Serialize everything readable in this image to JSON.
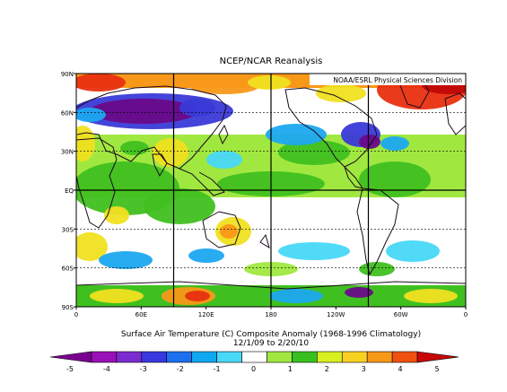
{
  "figure": {
    "title": "NCEP/NCAR Reanalysis",
    "credit": "NOAA/ESRL Physical Sciences Division",
    "caption_line1": "Surface Air Temperature (C) Composite Anomaly (1968-1996 Climatology)",
    "caption_line2": "12/1/09  to 2/20/10"
  },
  "map": {
    "lat_labels": [
      "90N",
      "60N",
      "30N",
      "EQ",
      "30S",
      "60S",
      "90S"
    ],
    "lon_labels": [
      "0",
      "60E",
      "120E",
      "180",
      "120W",
      "60W",
      "0"
    ],
    "projection": "cylindrical equidistant, 0 to 360E"
  },
  "colorbar": {
    "tick_labels": [
      "-5",
      "-4",
      "-3",
      "-2",
      "-1",
      "0",
      "1",
      "2",
      "3",
      "4",
      "5"
    ],
    "colors": [
      "#7a0090",
      "#9a10b8",
      "#7a2cd0",
      "#3838e0",
      "#1c70f0",
      "#10a8f0",
      "#48d8f8",
      "#ffffff",
      "#a0e840",
      "#38c020",
      "#d8f020",
      "#f8d020",
      "#f89818",
      "#f05010",
      "#c80808"
    ]
  },
  "anomaly_colors": {
    "strong_cold": "#6a0a8a",
    "cold": "#3a3ad8",
    "cool": "#1ca8f0",
    "slight_cool": "#48d8f8",
    "neutral": "#ffffff",
    "slight_warm": "#a0e840",
    "warm": "#40c020",
    "warmer": "#f0e020",
    "hot": "#f89818",
    "very_hot": "#e83010",
    "extreme": "#c00808"
  }
}
